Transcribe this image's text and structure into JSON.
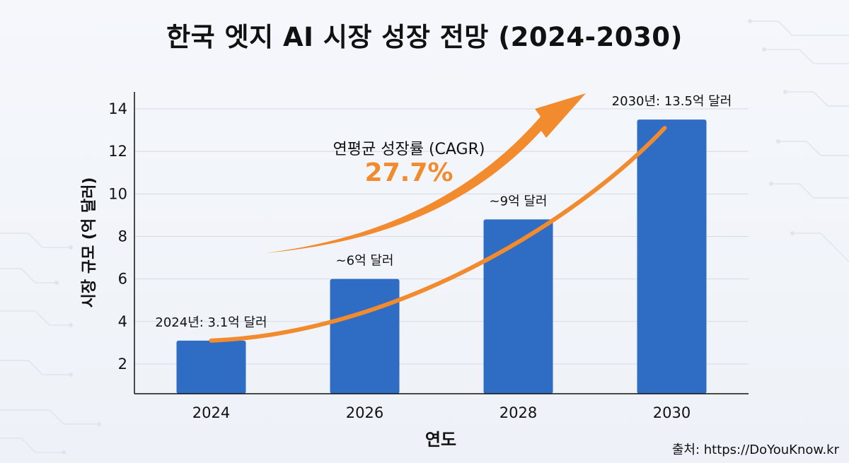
{
  "title": "한국 엣지 AI 시장 성장 전망 (2024-2030)",
  "source": "출처: https://DoYouKnow.kr",
  "chart_data": {
    "type": "bar",
    "categories": [
      "2024",
      "2026",
      "2028",
      "2030"
    ],
    "values": [
      3.1,
      6,
      8.8,
      13.5
    ],
    "data_labels": [
      "2024년: 3.1억 달러",
      "~6억 달러",
      "~9억 달러",
      "2030년: 13.5억 달러"
    ],
    "xlabel": "연도",
    "ylabel": "시장 규모 (억 달러)",
    "ylim": [
      0.6,
      14.8
    ],
    "yticks": [
      2,
      4,
      6,
      8,
      10,
      12,
      14
    ],
    "grid": true,
    "trend_line": {
      "from": 3.1,
      "to": 13.1
    },
    "cagr": {
      "label": "연평균 성장률 (CAGR)",
      "value": "27.7%"
    },
    "colors": {
      "bar": "#2f6cc4",
      "trend": "#f28a2e",
      "grid": "#d5dbe5",
      "axis": "#111111"
    }
  }
}
